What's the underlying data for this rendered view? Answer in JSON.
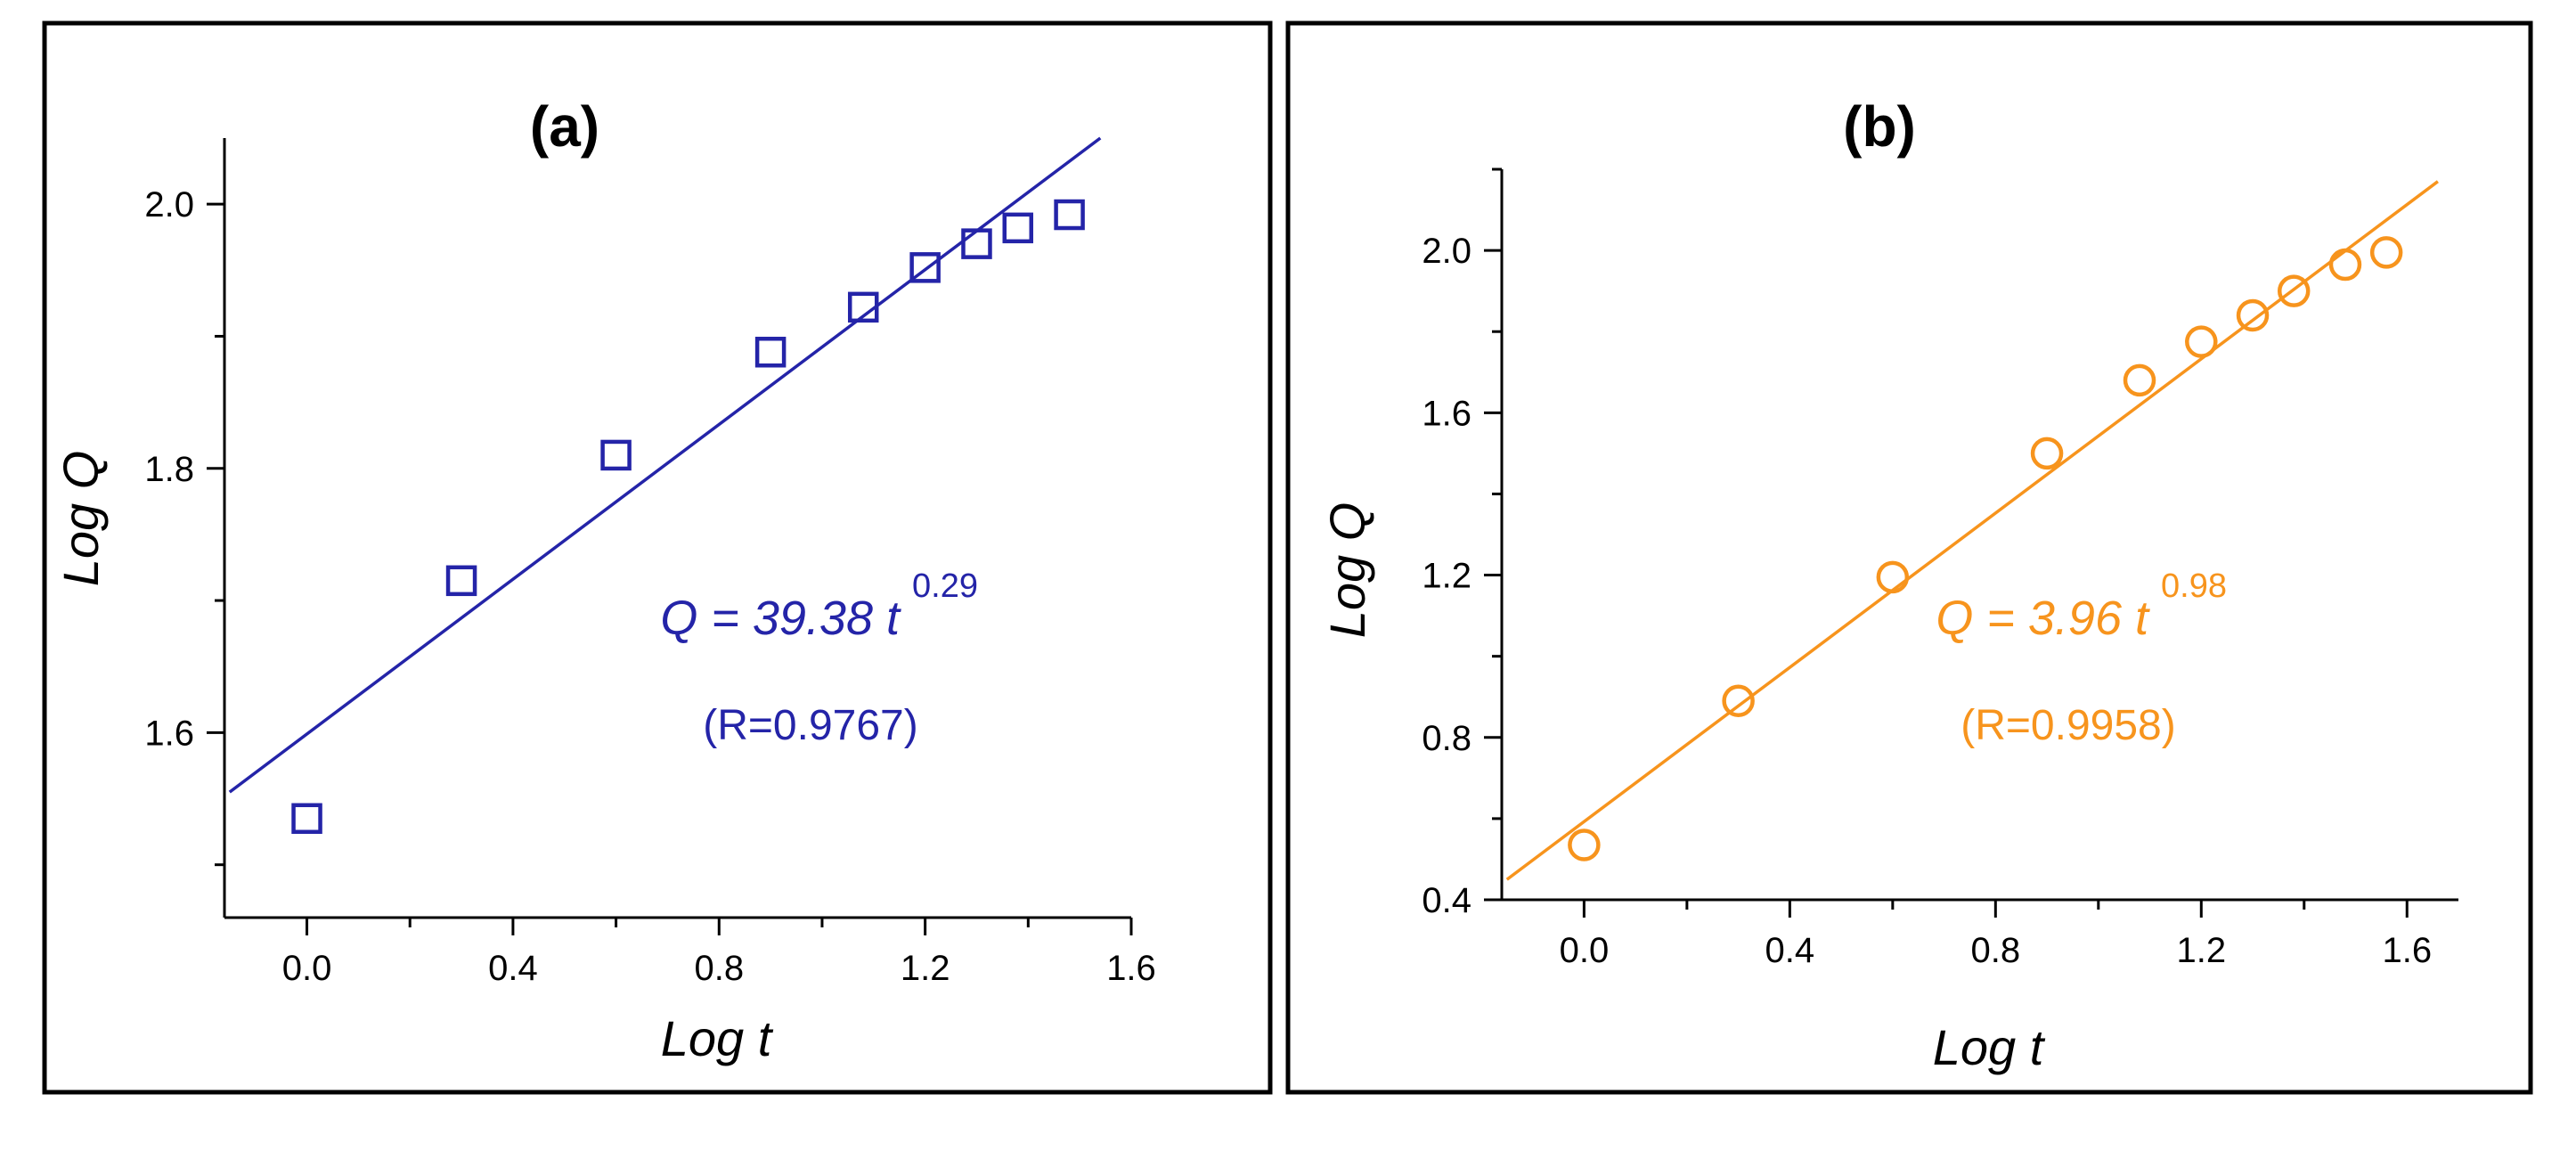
{
  "chart_data": [
    {
      "type": "scatter",
      "panel_label": "(a)",
      "xlabel": "Log t",
      "ylabel": "Log Q",
      "xlim": [
        -0.16,
        1.6
      ],
      "ylim": [
        1.46,
        2.05
      ],
      "xticks": [
        0.0,
        0.4,
        0.8,
        1.2,
        1.6
      ],
      "yticks": [
        1.6,
        1.8,
        2.0
      ],
      "xtick_labels": [
        "0.0",
        "0.4",
        "0.8",
        "1.2",
        "1.6"
      ],
      "ytick_labels": [
        "1.6",
        "1.8",
        "2.0"
      ],
      "marker": "square",
      "color": "#2424a8",
      "x": [
        0.0,
        0.3,
        0.6,
        0.9,
        1.08,
        1.2,
        1.3,
        1.38,
        1.48
      ],
      "y": [
        1.535,
        1.715,
        1.81,
        1.888,
        1.922,
        1.952,
        1.97,
        1.982,
        1.992
      ],
      "fit_line": {
        "x": [
          -0.15,
          1.54
        ],
        "y": [
          1.555,
          2.05
        ]
      },
      "equation": {
        "prefix": "Q = 39.38 t",
        "exponent": "0.29",
        "r_text": "(R=0.9767)"
      },
      "grid": false
    },
    {
      "type": "scatter",
      "panel_label": "(b)",
      "xlabel": "Log t",
      "ylabel": "Log Q",
      "xlim": [
        -0.16,
        1.7
      ],
      "ylim": [
        0.4,
        2.2
      ],
      "xticks": [
        0.0,
        0.4,
        0.8,
        1.2,
        1.6
      ],
      "yticks": [
        0.4,
        0.8,
        1.2,
        1.6,
        2.0
      ],
      "xtick_labels": [
        "0.0",
        "0.4",
        "0.8",
        "1.2",
        "1.6"
      ],
      "ytick_labels": [
        "0.4",
        "0.8",
        "1.2",
        "1.6",
        "2.0"
      ],
      "marker": "circle",
      "color": "#f7941d",
      "x": [
        0.0,
        0.3,
        0.6,
        0.9,
        1.08,
        1.2,
        1.3,
        1.38,
        1.48,
        1.56
      ],
      "y": [
        0.535,
        0.89,
        1.195,
        1.5,
        1.68,
        1.775,
        1.84,
        1.9,
        1.965,
        1.995
      ],
      "fit_line": {
        "x": [
          -0.15,
          1.66
        ],
        "y": [
          0.45,
          2.17
        ]
      },
      "equation": {
        "prefix": "Q = 3.96 t",
        "exponent": "0.98",
        "r_text": "(R=0.9958)"
      },
      "grid": false
    }
  ]
}
